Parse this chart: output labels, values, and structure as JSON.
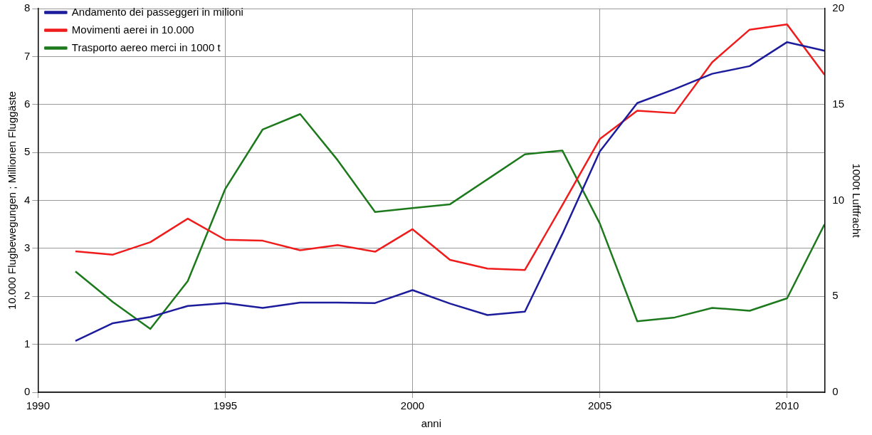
{
  "chart_data": {
    "type": "line",
    "xlabel": "anni",
    "ylabel": "10.000 Flugbewegungen ; Millionen Fluggäste",
    "y2label": "1000t Luftfracht",
    "xlim": [
      1990,
      2011
    ],
    "xticks": [
      1990,
      1995,
      2000,
      2005,
      2010
    ],
    "ylim": [
      0,
      8
    ],
    "yticks": [
      0,
      1,
      2,
      3,
      4,
      5,
      6,
      7,
      8
    ],
    "y2lim": [
      0,
      20
    ],
    "y2ticks": [
      0,
      5,
      10,
      15,
      20
    ],
    "grid": true,
    "legend": "top left",
    "marker": "none",
    "line_style": "solid",
    "x": [
      1991,
      1992,
      1993,
      1994,
      1995,
      1996,
      1997,
      1998,
      1999,
      2000,
      2001,
      2002,
      2003,
      2004,
      2005,
      2006,
      2007,
      2008,
      2009,
      2010,
      2011
    ],
    "series": [
      {
        "name": "Andamento dei passeggeri in milioni",
        "color": "#1c1c9c",
        "values": [
          1.07,
          1.44,
          1.57,
          1.8,
          1.86,
          1.76,
          1.87,
          1.87,
          1.86,
          2.13,
          1.85,
          1.61,
          1.68,
          3.3,
          5.02,
          6.03,
          6.32,
          6.64,
          6.8,
          7.3,
          7.12
        ]
      },
      {
        "name": "Movimenti aerei in 10.000",
        "color": "#f01c1c",
        "values": [
          2.94,
          2.87,
          3.13,
          3.62,
          3.18,
          3.16,
          2.96,
          3.07,
          2.93,
          3.4,
          2.76,
          2.58,
          2.55,
          3.9,
          5.28,
          5.87,
          5.82,
          6.88,
          7.56,
          7.67,
          6.62
        ]
      },
      {
        "name": "Trasporto aereo merci in 1000 t",
        "color": "#1c7a1c",
        "axis": "y2",
        "values": [
          6.3,
          4.7,
          3.3,
          5.8,
          10.6,
          13.7,
          14.5,
          12.1,
          9.4,
          9.6,
          9.8,
          11.1,
          12.4,
          12.6,
          8.8,
          3.7,
          3.9,
          4.4,
          4.25,
          4.9,
          8.75
        ]
      }
    ]
  }
}
